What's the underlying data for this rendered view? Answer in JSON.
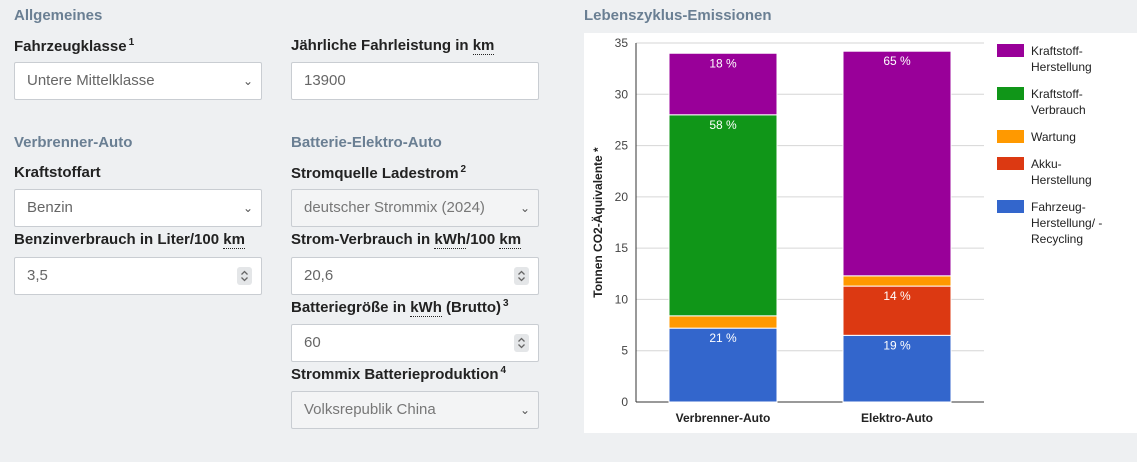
{
  "sections": {
    "general": "Allgemeines",
    "combustion": "Verbrenner-Auto",
    "electric": "Batterie-Elektro-Auto",
    "chart": "Lebenszyklus-Emissionen"
  },
  "fields": {
    "vehicle_class": {
      "label": "Fahrzeugklasse",
      "sup": "1",
      "value": "Untere Mittelklasse"
    },
    "annual_mileage": {
      "label_prefix": "Jährliche Fahrleistung in ",
      "unit": "km",
      "value": "13900"
    },
    "fuel_type": {
      "label": "Kraftstoffart",
      "value": "Benzin"
    },
    "fuel_consumption": {
      "label_prefix": "Benzinverbrauch in Liter/100 ",
      "unit": "km",
      "value": "3,5"
    },
    "power_source": {
      "label": "Stromquelle Ladestrom",
      "sup": "2",
      "value": "deutscher Strommix (2024)"
    },
    "power_consumption": {
      "label_prefix": "Strom-Verbrauch in ",
      "unit1": "kWh",
      "label_mid": "/100 ",
      "unit2": "km",
      "value": "20,6"
    },
    "battery_size": {
      "label_prefix": "Batteriegröße in ",
      "unit": "kWh",
      "label_suffix": " (Brutto)",
      "sup": "3",
      "value": "60"
    },
    "battery_mix": {
      "label": "Strommix Batterieproduktion",
      "sup": "4",
      "value": "Volksrepublik China"
    }
  },
  "chart_data": {
    "type": "bar",
    "stacked": true,
    "categories": [
      "Verbrenner-Auto",
      "Elektro-Auto"
    ],
    "ylabel": "Tonnen CO2-Äquivalente *",
    "ylim": [
      0,
      35
    ],
    "yticks": [
      0,
      5,
      10,
      15,
      20,
      25,
      30,
      35
    ],
    "grid": true,
    "legend_position": "right",
    "series": [
      {
        "name": "Fahrzeug-Herstellung/ -Recycling",
        "legend_lines": [
          "Fahrzeug-",
          "Herstellung/ -",
          "Recycling"
        ],
        "color": "#3366cc",
        "values": [
          7.2,
          6.5
        ],
        "labels": [
          "21 %",
          "19 %"
        ]
      },
      {
        "name": "Akku-Herstellung",
        "legend_lines": [
          "Akku-",
          "Herstellung"
        ],
        "color": "#dc3912",
        "values": [
          0,
          4.8
        ],
        "labels": [
          "",
          "14 %"
        ]
      },
      {
        "name": "Wartung",
        "legend_lines": [
          "Wartung"
        ],
        "color": "#ff9900",
        "values": [
          1.2,
          1.0
        ],
        "labels": [
          "",
          ""
        ]
      },
      {
        "name": "Kraftstoff-Verbrauch",
        "legend_lines": [
          "Kraftstoff-",
          "Verbrauch"
        ],
        "color": "#109618",
        "values": [
          19.6,
          0
        ],
        "labels": [
          "58 %",
          ""
        ]
      },
      {
        "name": "Kraftstoff-Herstellung",
        "legend_lines": [
          "Kraftstoff-",
          "Herstellung"
        ],
        "color": "#990099",
        "values": [
          6.0,
          21.9
        ],
        "labels": [
          "18 %",
          "65 %"
        ]
      }
    ],
    "legend_order": [
      4,
      3,
      2,
      1,
      0
    ]
  }
}
